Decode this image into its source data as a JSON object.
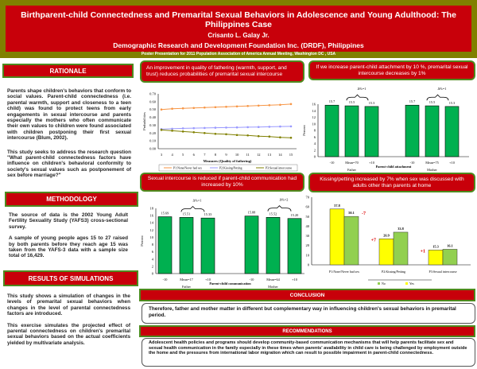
{
  "header": {
    "title": "Birthparent-child Connectedness and Premarital Sexual Behaviors in Adolescence and Young Adulthood: The Philippines Case",
    "author": "Crisanto L. Galay Jr.",
    "org": "Demographic Research and Development Foundation Inc. (DRDF), Philippines",
    "event": "Poster Presentation for 2011 Population Association of America Annual Meeting, Washington DC , USA"
  },
  "rationale": {
    "heading": "RATIONALE",
    "p1": "Parents shape children's behaviors that conform to social values. Parent-child connectedness (i.e. parental warmth, support and closeness to a teen child) was found to protect teens from early engagements in sexual intercourse and parents especially the mothers who often communicate their own values to children were found associated with children postponing their first sexual intercourse (Blum, 2002).",
    "p2": "This study seeks to address the research question \"What parent-child connectedness factors have influence on children's behavioral conformity to society's sexual values such as postponement of sex before marriage?\""
  },
  "methodology": {
    "heading": "METHODOLOGY",
    "p1": "The source of data is the 2002 Young Adult Fertility Sexuality Study (YAFS3) cross-sectional survey.",
    "p2": "A sample of young people ages 15 to 27 raised by both parents before they reach age 15 was taken from the YAFS-3 data with a sample size total of 16,429."
  },
  "results": {
    "heading": "RESULTS OF SIMULATIONS",
    "p1": "This study shows a simulation of changes in the levels of premarital sexual behaviors when changes in the level of parental connectedness factors are introduced.",
    "p2": "This exercise simulates the projected effect of parental connectedness on children's premarital sexual behaviors based on the actual coefficients yielded by multivariate analysis."
  },
  "panels": {
    "p1": "An improvement in quality of fathering (warmth, support, and trust) reduces probabilities of premarital sexual intercourse",
    "p2": "If we increase parent-child attachment by 10 %, premarital sexual intercourse decreases by 1%",
    "p3": "Sexual intercourse is reduced if parent-child communication had increased by 10%",
    "p4": "Kissing/petting increased by 7% when sex was discussed with adults other than parents at home"
  },
  "conclusion": {
    "heading": "CONCLUSION",
    "text": "Therefore, father and mother matter in different but complementary way in influencing children's sexual behaviors in premarital period."
  },
  "recommendations": {
    "heading": "RECOMMENDATIONS",
    "text": "Adolescent health policies and programs should develop community-based communication mechanisms that will help parents facilitate sex and sexual health communication in the family especially in these times when parents' availability in child care is being challenged by employment outside the home and the pressures from international labor migration which can result to possible impairment in parent-child connectedness."
  },
  "colors": {
    "red": "#c8000a",
    "olive": "#808000",
    "green_border": "#4e8a1e",
    "bar_green": "#00b050",
    "yes": "#ffff00",
    "no": "#92d050"
  },
  "chart_data": [
    {
      "type": "line",
      "xlabel": "Measures (Quality of fathering)",
      "ylabel": "Probabilities",
      "ylim": [
        0,
        0.7
      ],
      "yticks": [
        "0.00",
        "0.10",
        "0.20",
        "0.30",
        "0.40",
        "0.50",
        "0.60",
        "0.70"
      ],
      "x": [
        3,
        4,
        5,
        6,
        7,
        8,
        9,
        10,
        11,
        12,
        13,
        14,
        15
      ],
      "legend": "bottom",
      "series": [
        {
          "name": "P1:None/Never had sex",
          "color": "#f79646",
          "values": [
            0.5,
            0.51,
            0.515,
            0.52,
            0.525,
            0.53,
            0.535,
            0.54,
            0.545,
            0.55,
            0.555,
            0.56,
            0.57
          ]
        },
        {
          "name": "P2:Kissing/Petting",
          "color": "#9999ff",
          "values": [
            0.25,
            0.255,
            0.26,
            0.262,
            0.265,
            0.268,
            0.27,
            0.272,
            0.275,
            0.277,
            0.28,
            0.283,
            0.285
          ]
        },
        {
          "name": "P3:Sexual intercourse",
          "color": "#808000",
          "values": [
            0.24,
            0.23,
            0.22,
            0.21,
            0.2,
            0.19,
            0.185,
            0.175,
            0.17,
            0.16,
            0.155,
            0.145,
            0.14
          ]
        }
      ]
    },
    {
      "type": "bar",
      "xlabel": "Parent-child attachment",
      "ylabel": "Percent",
      "ylim": [
        0,
        16
      ],
      "yticks": [
        "0",
        "2",
        "4",
        "6",
        "8",
        "10",
        "12",
        "14",
        "16"
      ],
      "groups": [
        "Father",
        "Mother"
      ],
      "categories": [
        [
          "-10",
          "Mean=70",
          "+10"
        ],
        [
          "-10",
          "Mean=75",
          "+10"
        ]
      ],
      "values": [
        [
          15.7,
          15.5,
          15.3
        ],
        [
          15.7,
          15.5,
          15.3
        ]
      ],
      "labels": [
        [
          "15.7",
          "15.5",
          "15.3"
        ],
        [
          "15.7",
          "15.5",
          "15.3"
        ]
      ],
      "annotations": [
        "Δ%=1",
        "Δ%=1"
      ]
    },
    {
      "type": "bar",
      "xlabel": "Parent-child communication",
      "ylabel": "Percent",
      "ylim": [
        0,
        18
      ],
      "yticks": [
        "0",
        "2",
        "4",
        "6",
        "8",
        "10",
        "12",
        "14",
        "16",
        "18"
      ],
      "groups": [
        "Father",
        "Mother"
      ],
      "categories": [
        [
          "-10",
          "Mean=17",
          "+10"
        ],
        [
          "-10",
          "Mean=64",
          "+10"
        ]
      ],
      "values": [
        [
          15.69,
          15.51,
          15.33
        ],
        [
          15.88,
          15.52,
          15.2
        ]
      ],
      "labels": [
        [
          "15.69",
          "15.51",
          "15.33"
        ],
        [
          "15.88",
          "15.52",
          "15.20"
        ]
      ],
      "annotations": [
        "Δ%=1",
        "Δ%=2"
      ]
    },
    {
      "type": "bar",
      "ylim": [
        0,
        70
      ],
      "yticks": [
        "0",
        "10",
        "20",
        "30",
        "40",
        "50",
        "60",
        "70"
      ],
      "categories": [
        "P1:None/Never had sex",
        "P2:Kissing/Petting",
        "P3:Sexual intercourse"
      ],
      "series": [
        {
          "name": "Yes",
          "color": "#ffff00",
          "values": [
            57.8,
            26.9,
            15.3
          ]
        },
        {
          "name": "No",
          "color": "#92d050",
          "values": [
            50.1,
            33.8,
            16.1
          ]
        }
      ],
      "annotations": [
        "-7",
        "+7",
        "+1"
      ],
      "legend": "bottom"
    }
  ]
}
